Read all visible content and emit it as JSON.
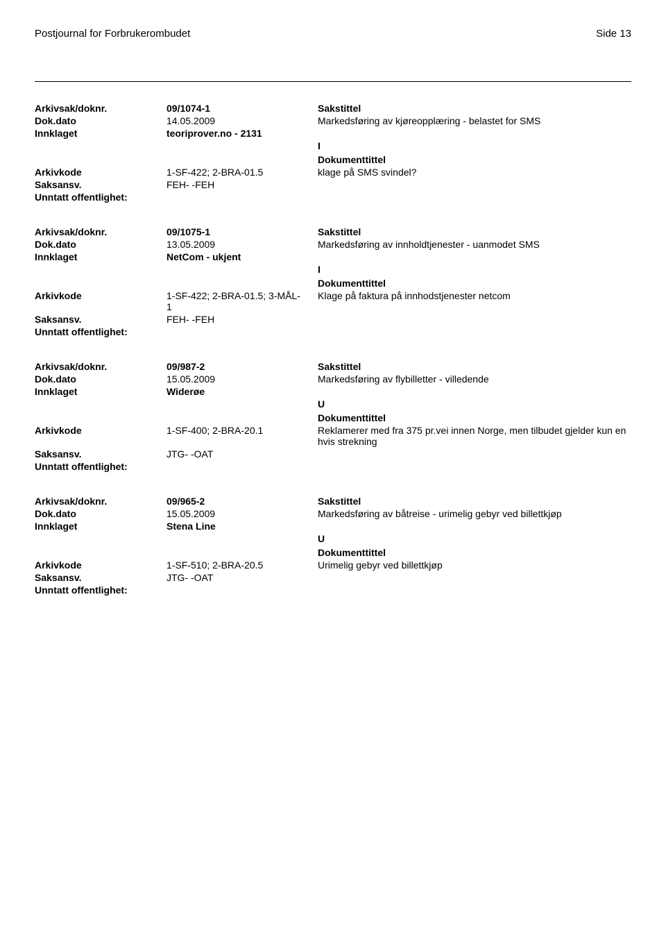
{
  "header": {
    "journal_title": "Postjournal for Forbrukerombudet",
    "page_label": "Side 13"
  },
  "labels": {
    "arkivsak": "Arkivsak/doknr.",
    "dokdato": "Dok.dato",
    "innklaget": "Innklaget",
    "arkivkode": "Arkivkode",
    "saksansv": "Saksansv.",
    "unntatt": "Unntatt offentlighet:",
    "sakstittel": "Sakstittel",
    "dokumenttittel": "Dokumenttittel"
  },
  "records": [
    {
      "arkivsak": "09/1074-1",
      "dokdato": "14.05.2009",
      "sakstittel_text": "Markedsføring av kjøreopplæring - belastet for SMS",
      "innklaget": "teoriprover.no - 2131",
      "indicator": "I",
      "arkivkode": "1-SF-422; 2-BRA-01.5",
      "doktittel_text": "klage på SMS svindel?",
      "saksansv": "FEH- -FEH"
    },
    {
      "arkivsak": "09/1075-1",
      "dokdato": "13.05.2009",
      "sakstittel_text": "Markedsføring av innholdtjenester - uanmodet SMS",
      "innklaget": "NetCom - ukjent",
      "indicator": "I",
      "arkivkode": "1-SF-422; 2-BRA-01.5; 3-MÅL-1",
      "doktittel_text": "Klage på faktura på innhodstjenester netcom",
      "saksansv": "FEH- -FEH"
    },
    {
      "arkivsak": "09/987-2",
      "dokdato": "15.05.2009",
      "sakstittel_text": "Markedsføring av flybilletter - villedende",
      "innklaget": "Widerøe",
      "indicator": "U",
      "arkivkode": "1-SF-400; 2-BRA-20.1",
      "doktittel_text": "Reklamerer med fra 375 pr.vei innen Norge, men tilbudet gjelder kun en hvis strekning",
      "saksansv": "JTG- -OAT"
    },
    {
      "arkivsak": "09/965-2",
      "dokdato": "15.05.2009",
      "sakstittel_text": "Markedsføring av båtreise - urimelig gebyr ved billettkjøp",
      "innklaget": "Stena Line",
      "indicator": "U",
      "arkivkode": "1-SF-510; 2-BRA-20.5",
      "doktittel_text": "Urimelig gebyr ved billettkjøp",
      "saksansv": "JTG- -OAT"
    }
  ]
}
